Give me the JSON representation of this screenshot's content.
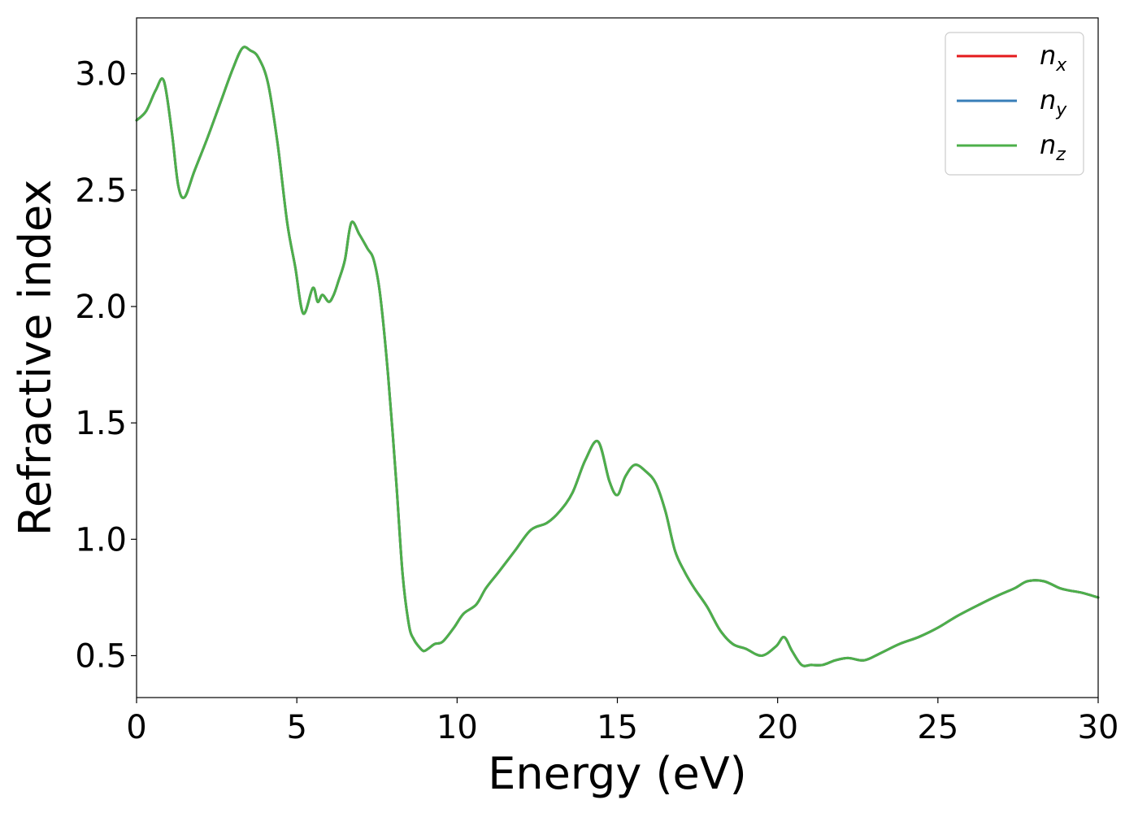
{
  "chart_data": {
    "type": "line",
    "title": "",
    "xlabel": "Energy (eV)",
    "ylabel": "Refractive index",
    "xlim": [
      0,
      30
    ],
    "ylim": [
      0.32,
      3.24
    ],
    "xticks": [
      0,
      5,
      10,
      15,
      20,
      25,
      30
    ],
    "xtick_labels": [
      "0",
      "5",
      "10",
      "15",
      "20",
      "25",
      "30"
    ],
    "yticks": [
      0.5,
      1.0,
      1.5,
      2.0,
      2.5,
      3.0
    ],
    "ytick_labels": [
      "0.5",
      "1.0",
      "1.5",
      "2.0",
      "2.5",
      "3.0"
    ],
    "grid": false,
    "legend_position": "top-right",
    "x": [
      0,
      0.3,
      0.6,
      0.85,
      1.1,
      1.3,
      1.5,
      1.8,
      2.2,
      2.6,
      3.0,
      3.3,
      3.55,
      3.8,
      4.1,
      4.4,
      4.7,
      4.95,
      5.2,
      5.5,
      5.65,
      5.8,
      6.0,
      6.15,
      6.3,
      6.5,
      6.7,
      6.95,
      7.2,
      7.4,
      7.6,
      7.85,
      8.1,
      8.3,
      8.5,
      8.65,
      8.8,
      8.95,
      9.1,
      9.3,
      9.55,
      9.9,
      10.2,
      10.6,
      10.9,
      11.3,
      11.8,
      12.3,
      12.8,
      13.2,
      13.6,
      14.0,
      14.4,
      14.75,
      15.0,
      15.25,
      15.55,
      15.9,
      16.2,
      16.5,
      16.8,
      17.1,
      17.4,
      17.8,
      18.2,
      18.6,
      19.0,
      19.5,
      19.95,
      20.2,
      20.45,
      20.75,
      21.05,
      21.4,
      21.8,
      22.2,
      22.7,
      23.2,
      23.8,
      24.4,
      25.0,
      25.6,
      26.3,
      26.9,
      27.4,
      27.8,
      28.3,
      28.8,
      29.1,
      29.5,
      30.0
    ],
    "series": [
      {
        "name": "n_x",
        "color": "#e41a1c",
        "values": [
          2.8,
          2.84,
          2.93,
          2.97,
          2.75,
          2.52,
          2.47,
          2.58,
          2.72,
          2.87,
          3.02,
          3.11,
          3.1,
          3.07,
          2.96,
          2.7,
          2.36,
          2.17,
          1.97,
          2.08,
          2.02,
          2.05,
          2.02,
          2.05,
          2.11,
          2.2,
          2.36,
          2.31,
          2.25,
          2.2,
          2.05,
          1.7,
          1.25,
          0.85,
          0.63,
          0.57,
          0.54,
          0.52,
          0.53,
          0.55,
          0.56,
          0.62,
          0.68,
          0.72,
          0.79,
          0.86,
          0.95,
          1.04,
          1.07,
          1.12,
          1.2,
          1.34,
          1.42,
          1.25,
          1.19,
          1.27,
          1.32,
          1.29,
          1.24,
          1.12,
          0.95,
          0.86,
          0.79,
          0.71,
          0.61,
          0.55,
          0.53,
          0.5,
          0.54,
          0.58,
          0.52,
          0.46,
          0.46,
          0.46,
          0.48,
          0.49,
          0.48,
          0.51,
          0.55,
          0.58,
          0.62,
          0.67,
          0.72,
          0.76,
          0.79,
          0.82,
          0.82,
          0.79,
          0.78,
          0.77,
          0.75
        ]
      },
      {
        "name": "n_y",
        "color": "#377eb8",
        "values": [
          2.8,
          2.84,
          2.93,
          2.97,
          2.75,
          2.52,
          2.47,
          2.58,
          2.72,
          2.87,
          3.02,
          3.11,
          3.1,
          3.07,
          2.96,
          2.7,
          2.36,
          2.17,
          1.97,
          2.08,
          2.02,
          2.05,
          2.02,
          2.05,
          2.11,
          2.2,
          2.36,
          2.31,
          2.25,
          2.2,
          2.05,
          1.7,
          1.25,
          0.85,
          0.63,
          0.57,
          0.54,
          0.52,
          0.53,
          0.55,
          0.56,
          0.62,
          0.68,
          0.72,
          0.79,
          0.86,
          0.95,
          1.04,
          1.07,
          1.12,
          1.2,
          1.34,
          1.42,
          1.25,
          1.19,
          1.27,
          1.32,
          1.29,
          1.24,
          1.12,
          0.95,
          0.86,
          0.79,
          0.71,
          0.61,
          0.55,
          0.53,
          0.5,
          0.54,
          0.58,
          0.52,
          0.46,
          0.46,
          0.46,
          0.48,
          0.49,
          0.48,
          0.51,
          0.55,
          0.58,
          0.62,
          0.67,
          0.72,
          0.76,
          0.79,
          0.82,
          0.82,
          0.79,
          0.78,
          0.77,
          0.75
        ]
      },
      {
        "name": "n_z",
        "color": "#4daf4a",
        "values": [
          2.8,
          2.84,
          2.93,
          2.97,
          2.75,
          2.52,
          2.47,
          2.58,
          2.72,
          2.87,
          3.02,
          3.11,
          3.1,
          3.07,
          2.96,
          2.7,
          2.36,
          2.17,
          1.97,
          2.08,
          2.02,
          2.05,
          2.02,
          2.05,
          2.11,
          2.2,
          2.36,
          2.31,
          2.25,
          2.2,
          2.05,
          1.7,
          1.25,
          0.85,
          0.63,
          0.57,
          0.54,
          0.52,
          0.53,
          0.55,
          0.56,
          0.62,
          0.68,
          0.72,
          0.79,
          0.86,
          0.95,
          1.04,
          1.07,
          1.12,
          1.2,
          1.34,
          1.42,
          1.25,
          1.19,
          1.27,
          1.32,
          1.29,
          1.24,
          1.12,
          0.95,
          0.86,
          0.79,
          0.71,
          0.61,
          0.55,
          0.53,
          0.5,
          0.54,
          0.58,
          0.52,
          0.46,
          0.46,
          0.46,
          0.48,
          0.49,
          0.48,
          0.51,
          0.55,
          0.58,
          0.62,
          0.67,
          0.72,
          0.76,
          0.79,
          0.82,
          0.82,
          0.79,
          0.78,
          0.77,
          0.75
        ]
      }
    ],
    "legend": [
      {
        "base": "n",
        "sub": "x",
        "color": "#e41a1c"
      },
      {
        "base": "n",
        "sub": "y",
        "color": "#377eb8"
      },
      {
        "base": "n",
        "sub": "z",
        "color": "#4daf4a"
      }
    ]
  }
}
